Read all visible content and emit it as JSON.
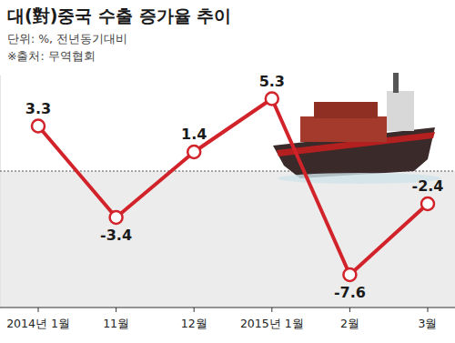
{
  "chart_data": {
    "type": "line",
    "title": "대(對)중국 수출 증가율 추이",
    "subtitle": "단위: %, 전년동기대비",
    "source": "※출처: 무역협회",
    "categories": [
      "2014년 1월",
      "11월",
      "12월",
      "2015년 1월",
      "2월",
      "3월"
    ],
    "values": [
      3.3,
      -3.4,
      1.4,
      5.3,
      -7.6,
      -2.4
    ],
    "color": "#d2232a",
    "ylim": [
      -10,
      7
    ],
    "yticks": [
      0
    ],
    "grid": true,
    "data_labels": true,
    "tick_labels": "x",
    "marker": "circle",
    "line_style": "solid"
  }
}
